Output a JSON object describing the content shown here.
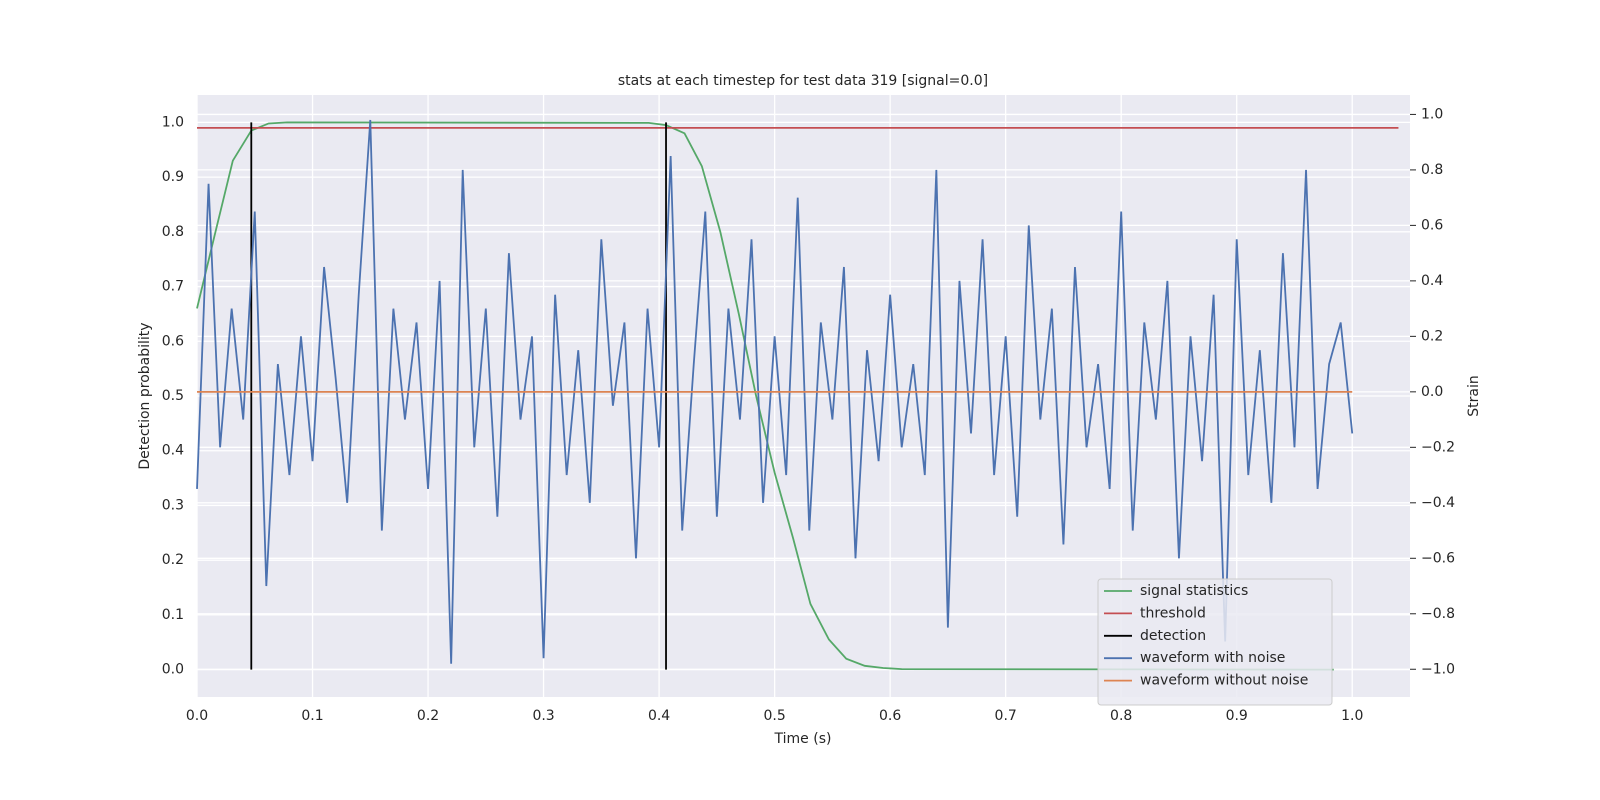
{
  "chart_data": {
    "type": "line",
    "title": "stats at each timestep for test data 319 [signal=0.0]",
    "x_label": "Time (s)",
    "y_label": "Detection probability",
    "y2_label": "Strain",
    "xlim": [
      0,
      1.05
    ],
    "ylim": [
      -0.05,
      1.05
    ],
    "y2lim": [
      -1.1,
      1.07
    ],
    "xticks": [
      {
        "value": 0,
        "label": "0.0"
      },
      0.1,
      0.2,
      0.3,
      0.4,
      0.5,
      0.6,
      0.7,
      0.8,
      0.9,
      {
        "value": 1,
        "label": "1.0"
      }
    ],
    "yticks": [
      {
        "value": 0,
        "label": "0.0"
      },
      0.1,
      0.2,
      0.3,
      0.4,
      0.5,
      0.6,
      0.7,
      0.8,
      0.9,
      {
        "value": 1,
        "label": "1.0"
      }
    ],
    "y2ticks": [
      {
        "value": -1,
        "label": "−1.0"
      },
      {
        "value": -0.8,
        "label": "−0.8"
      },
      {
        "value": -0.6,
        "label": "−0.6"
      },
      {
        "value": -0.4,
        "label": "−0.4"
      },
      {
        "value": -0.2,
        "label": "−0.2"
      },
      {
        "value": 0,
        "label": "0.0"
      },
      0.2,
      0.4,
      0.6,
      0.8,
      {
        "value": 1,
        "label": "1.0"
      }
    ],
    "grid": true,
    "legend": "lower right",
    "series": [
      {
        "name": "signal statistics",
        "color": "#55a868",
        "x": [
          0,
          0.016,
          0.031,
          0.047,
          0.062,
          0.078,
          0.391,
          0.406,
          0.422,
          0.437,
          0.453,
          0.469,
          0.484,
          0.5,
          0.516,
          0.531,
          0.547,
          0.562,
          0.578,
          0.594,
          0.61,
          0.984
        ],
        "values": [
          0.66,
          0.8,
          0.93,
          0.985,
          0.998,
          1.0,
          0.999,
          0.995,
          0.98,
          0.92,
          0.8,
          0.65,
          0.5,
          0.36,
          0.24,
          0.12,
          0.055,
          0.02,
          0.007,
          0.003,
          0.001,
          0.0
        ]
      },
      {
        "name": "threshold",
        "color": "#c44e52",
        "x": [
          0,
          1.04
        ],
        "values": [
          0.99,
          0.99
        ]
      },
      {
        "name": "detection",
        "color": "#000000",
        "mark": "stem",
        "x": [
          0.047,
          0.406
        ],
        "values": [
          1,
          1
        ]
      },
      {
        "name": "waveform with noise",
        "color": "#4c72b0",
        "axis": "y2",
        "x": [
          0,
          0.01,
          0.02,
          0.03,
          0.04,
          0.05,
          0.06,
          0.07,
          0.08,
          0.09,
          0.1,
          0.11,
          0.12,
          0.13,
          0.14,
          0.15,
          0.16,
          0.17,
          0.18,
          0.19,
          0.2,
          0.21,
          0.22,
          0.23,
          0.24,
          0.25,
          0.26,
          0.27,
          0.28,
          0.29,
          0.3,
          0.31,
          0.32,
          0.33,
          0.34,
          0.35,
          0.36,
          0.37,
          0.38,
          0.39,
          0.4,
          0.41,
          0.42,
          0.43,
          0.44,
          0.45,
          0.46,
          0.47,
          0.48,
          0.49,
          0.5,
          0.51,
          0.52,
          0.53,
          0.54,
          0.55,
          0.56,
          0.57,
          0.58,
          0.59,
          0.6,
          0.61,
          0.62,
          0.63,
          0.64,
          0.65,
          0.66,
          0.67,
          0.68,
          0.69,
          0.7,
          0.71,
          0.72,
          0.73,
          0.74,
          0.75,
          0.76,
          0.77,
          0.78,
          0.79,
          0.8,
          0.81,
          0.82,
          0.83,
          0.84,
          0.85,
          0.86,
          0.87,
          0.88,
          0.89,
          0.9,
          0.91,
          0.92,
          0.93,
          0.94,
          0.95,
          0.96,
          0.97,
          0.98,
          0.99,
          1
        ],
        "values": [
          -0.35,
          0.75,
          -0.2,
          0.3,
          -0.1,
          0.65,
          -0.7,
          0.1,
          -0.3,
          0.2,
          -0.25,
          0.45,
          0.05,
          -0.4,
          0.35,
          0.98,
          -0.5,
          0.3,
          -0.1,
          0.25,
          -0.35,
          0.4,
          -0.98,
          0.8,
          -0.2,
          0.3,
          -0.45,
          0.5,
          -0.1,
          0.2,
          -0.96,
          0.35,
          -0.3,
          0.15,
          -0.4,
          0.55,
          -0.05,
          0.25,
          -0.6,
          0.3,
          -0.2,
          0.85,
          -0.5,
          0.1,
          0.65,
          -0.45,
          0.3,
          -0.1,
          0.55,
          -0.4,
          0.2,
          -0.3,
          0.7,
          -0.5,
          0.25,
          -0.1,
          0.45,
          -0.6,
          0.15,
          -0.25,
          0.35,
          -0.2,
          0.1,
          -0.3,
          0.8,
          -0.85,
          0.4,
          -0.15,
          0.55,
          -0.3,
          0.2,
          -0.45,
          0.6,
          -0.1,
          0.3,
          -0.55,
          0.45,
          -0.2,
          0.1,
          -0.35,
          0.65,
          -0.5,
          0.25,
          -0.1,
          0.4,
          -0.6,
          0.2,
          -0.25,
          0.35,
          -0.9,
          0.55,
          -0.3,
          0.15,
          -0.4,
          0.5,
          -0.2,
          0.8,
          -0.35,
          0.1,
          0.25,
          -0.15
        ]
      },
      {
        "name": "waveform without noise",
        "color": "#dd8452",
        "axis": "y2",
        "x": [
          0,
          1
        ],
        "values": [
          0,
          0
        ]
      }
    ]
  }
}
